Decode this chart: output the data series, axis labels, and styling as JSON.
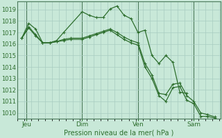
{
  "background_color": "#c8e8d8",
  "grid_color_minor": "#a8ccc0",
  "grid_color_major": "#4a7a5a",
  "line_color": "#2d6e2d",
  "title": "Pression niveau de la mer( hPa )",
  "ylim": [
    1009.5,
    1019.7
  ],
  "yticks": [
    1010,
    1011,
    1012,
    1013,
    1014,
    1015,
    1016,
    1017,
    1018,
    1019
  ],
  "day_labels": [
    "Jeu",
    "Dim",
    "Ven",
    "Sam"
  ],
  "day_positions": [
    8,
    56,
    104,
    152
  ],
  "xlim": [
    0,
    175
  ],
  "series1_x": [
    4,
    10,
    16,
    22,
    28,
    34,
    40,
    56,
    62,
    68,
    74,
    80,
    86,
    92,
    98,
    104,
    110,
    116,
    122,
    128,
    134,
    140,
    146
  ],
  "series1_y": [
    1016.5,
    1017.8,
    1017.3,
    1016.1,
    1016.1,
    1016.3,
    1017.0,
    1018.8,
    1018.5,
    1018.3,
    1018.3,
    1019.05,
    1019.3,
    1018.5,
    1018.2,
    1017.0,
    1017.2,
    1015.0,
    1014.3,
    1015.0,
    1014.4,
    1011.8,
    1011.7
  ],
  "series2_x": [
    4,
    10,
    16,
    22,
    28,
    34,
    40,
    46,
    56,
    62,
    68,
    74,
    80,
    86,
    92,
    98,
    104,
    110,
    116,
    122,
    128,
    134,
    140,
    146,
    152,
    158,
    164,
    170
  ],
  "series2_y": [
    1016.5,
    1017.5,
    1016.8,
    1016.1,
    1016.1,
    1016.2,
    1016.4,
    1016.5,
    1016.5,
    1016.7,
    1016.9,
    1017.1,
    1017.3,
    1017.0,
    1016.6,
    1016.3,
    1016.1,
    1014.3,
    1013.3,
    1011.7,
    1011.6,
    1012.5,
    1012.6,
    1011.5,
    1011.0,
    1010.0,
    1009.85,
    1009.65
  ],
  "series3_x": [
    4,
    10,
    16,
    22,
    28,
    34,
    40,
    46,
    56,
    62,
    68,
    74,
    80,
    86,
    92,
    98,
    104,
    110,
    116,
    122,
    128,
    134,
    140,
    146,
    152,
    158,
    164,
    170
  ],
  "series3_y": [
    1016.5,
    1017.4,
    1016.7,
    1016.1,
    1016.1,
    1016.2,
    1016.3,
    1016.4,
    1016.4,
    1016.6,
    1016.8,
    1017.0,
    1017.2,
    1016.8,
    1016.4,
    1016.1,
    1015.9,
    1014.0,
    1013.0,
    1011.5,
    1011.0,
    1012.2,
    1012.3,
    1011.1,
    1010.8,
    1009.7,
    1009.7,
    1009.55
  ]
}
